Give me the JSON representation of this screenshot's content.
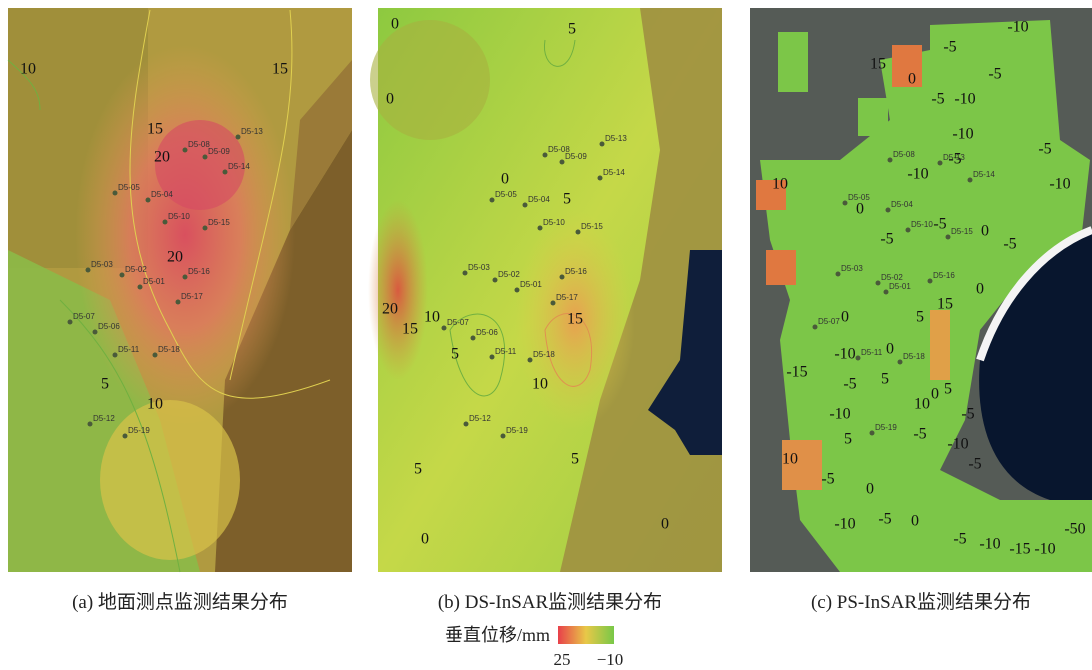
{
  "panels": [
    {
      "caption": "(a) 地面测点监测结果分布",
      "stations": [
        "D5-08",
        "D5-09",
        "D5-13",
        "D5-14",
        "D5-05",
        "D5-04",
        "D5-10",
        "D5-15",
        "D5-03",
        "D5-02",
        "D5-01",
        "D5-16",
        "D5-17",
        "D5-07",
        "D5-06",
        "D5-11",
        "D5-18",
        "D5-12",
        "D5-19"
      ],
      "contour_labels": [
        "10",
        "15",
        "15",
        "20",
        "20",
        "5",
        "10"
      ]
    },
    {
      "caption": "(b) DS-InSAR监测结果分布",
      "stations": [
        "D5-08",
        "D5-09",
        "D5-13",
        "D5-14",
        "D5-05",
        "D5-04",
        "D5-10",
        "D5-15",
        "D5-03",
        "D5-02",
        "D5-01",
        "D5-16",
        "D5-17",
        "D5-07",
        "D5-06",
        "D5-11",
        "D5-18",
        "D5-12",
        "D5-19"
      ],
      "contour_labels": [
        "0",
        "5",
        "0",
        "0",
        "5",
        "20",
        "15",
        "10",
        "5",
        "15",
        "10",
        "5",
        "5",
        "0",
        "0"
      ]
    },
    {
      "caption": "(c) PS-InSAR监测结果分布",
      "stations": [
        "D5-08",
        "D5-13",
        "D5-14",
        "D5-05",
        "D5-04",
        "D5-10",
        "D5-15",
        "D5-03",
        "D5-02",
        "D5-01",
        "D5-16",
        "D5-07",
        "D5-11",
        "D5-18",
        "D5-19"
      ],
      "contour_labels": [
        "-10",
        "-5",
        "15",
        "0",
        "-5",
        "-5",
        "-10",
        "-10",
        "-5",
        "-10",
        "-5",
        "-10",
        "10",
        "0",
        "-5",
        "-5",
        "0",
        "-5",
        "0",
        "15",
        "5",
        "0",
        "-10",
        "-15",
        "-5",
        "0",
        "5",
        "-10",
        "10",
        "0",
        "5",
        "-5",
        "-10",
        "5",
        "-5",
        "10",
        "-5",
        "-5",
        "0",
        "-5",
        "0",
        "-10",
        "-5",
        "-10",
        "-15",
        "-10",
        "-50"
      ]
    }
  ],
  "legend": {
    "title": "垂直位移/mm",
    "max_label": "25",
    "min_label": "−10"
  }
}
